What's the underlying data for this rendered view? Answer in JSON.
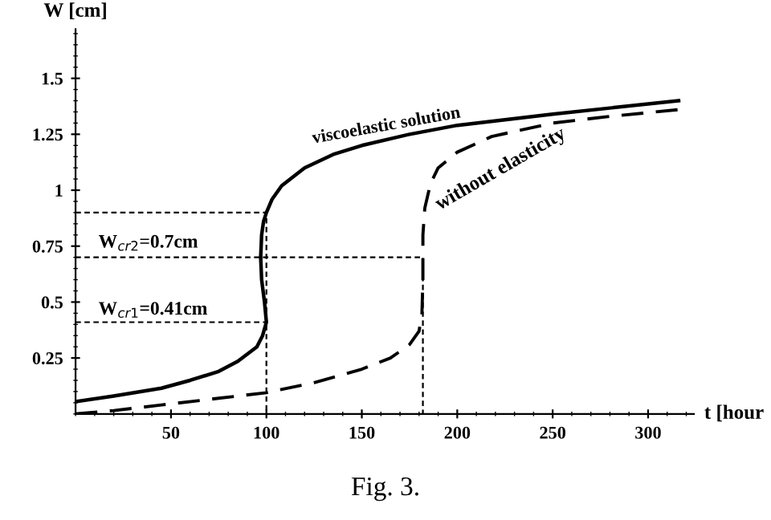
{
  "chart_data": {
    "type": "line",
    "xlabel": "t [hour",
    "ylabel": "W [cm]",
    "xlim": [
      0,
      324
    ],
    "ylim": [
      0,
      1.72
    ],
    "xticks": [
      50,
      100,
      150,
      200,
      250,
      300
    ],
    "yticks": [
      0.25,
      0.5,
      0.75,
      1,
      1.25,
      1.5
    ],
    "grid": false,
    "legend": false,
    "marker": "none",
    "series": [
      {
        "color": "#000000",
        "line_style": "solid",
        "x": [
          0,
          20,
          45,
          60,
          75,
          85,
          95,
          98,
          100,
          99,
          97.5,
          97,
          97.5,
          98.5,
          100,
          103,
          108,
          120,
          135,
          150,
          175,
          200,
          250,
          316
        ],
        "values": [
          0.055,
          0.08,
          0.115,
          0.15,
          0.19,
          0.235,
          0.3,
          0.35,
          0.41,
          0.5,
          0.6,
          0.7,
          0.8,
          0.86,
          0.9,
          0.96,
          1.02,
          1.1,
          1.16,
          1.2,
          1.25,
          1.29,
          1.34,
          1.4
        ]
      },
      {
        "color": "#000000",
        "line_style": "dashed",
        "x": [
          0,
          20,
          45,
          75,
          100,
          125,
          150,
          165,
          175,
          180,
          181.5,
          182,
          182,
          183,
          186,
          190,
          200,
          218,
          250,
          280,
          316
        ],
        "values": [
          0,
          0.015,
          0.04,
          0.07,
          0.095,
          0.14,
          0.2,
          0.25,
          0.31,
          0.37,
          0.45,
          0.6,
          0.8,
          0.92,
          1.03,
          1.1,
          1.17,
          1.24,
          1.3,
          1.33,
          1.36
        ]
      },
      {
        "color": "#000000",
        "line_style": "dotted",
        "x": [
          0,
          100,
          100
        ],
        "values": [
          0.9,
          0.9,
          0
        ]
      },
      {
        "color": "#000000",
        "line_style": "dotted",
        "x": [
          0,
          182,
          182
        ],
        "values": [
          0.7,
          0.7,
          0
        ]
      },
      {
        "color": "#000000",
        "line_style": "dotted",
        "x": [
          0,
          100
        ],
        "values": [
          0.41,
          0.41
        ]
      }
    ],
    "annotations": [
      "viscoelastic solution",
      "without elasticity",
      "W$_{cr2}$=0.7cm",
      "W$_{cr1}$=0.41cm",
      "Fig. 3."
    ]
  }
}
